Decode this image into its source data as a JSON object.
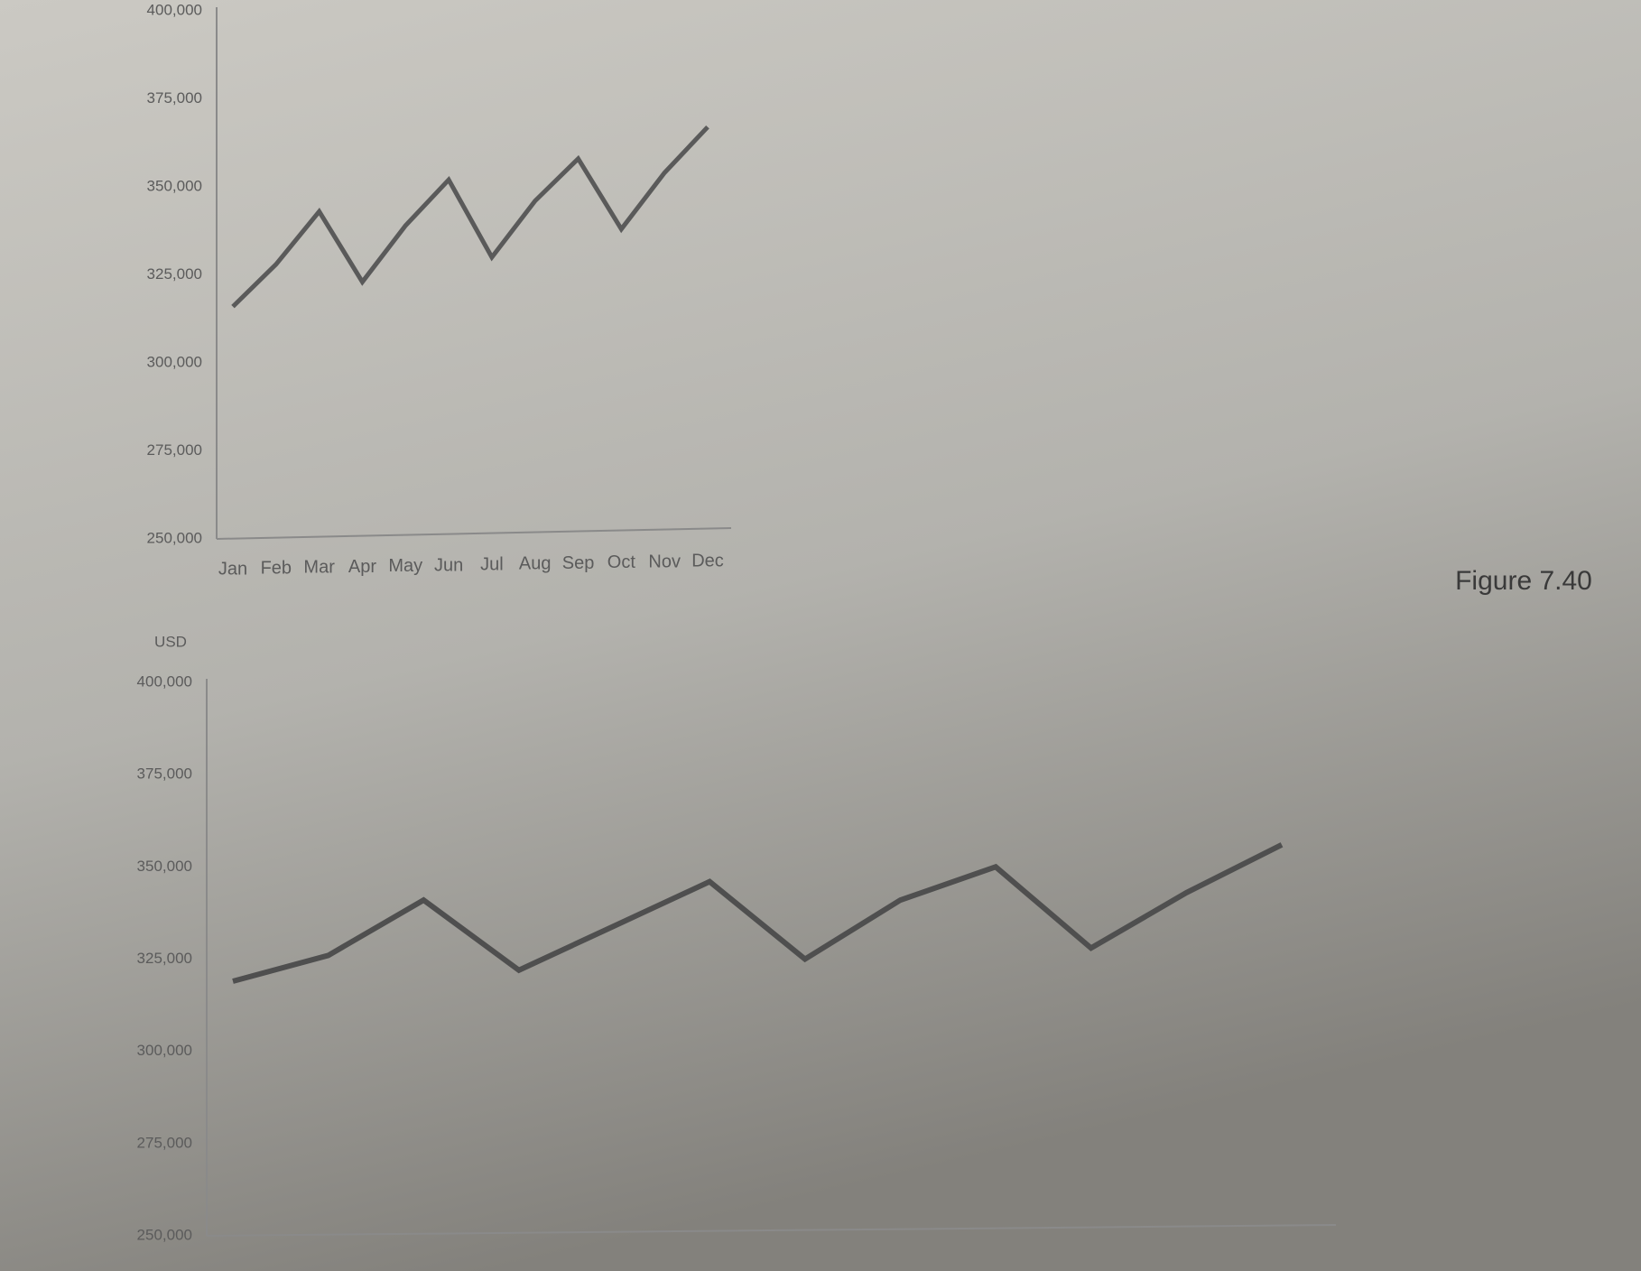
{
  "chart_data": [
    {
      "type": "line",
      "categories": [
        "Jan",
        "Feb",
        "Mar",
        "Apr",
        "May",
        "Jun",
        "Jul",
        "Aug",
        "Sep",
        "Oct",
        "Nov",
        "Dec"
      ],
      "series": [
        {
          "color": "#5a5a5a",
          "values": [
            316000,
            328000,
            343000,
            323000,
            339000,
            352000,
            330000,
            346000,
            358000,
            338000,
            354000,
            367000
          ]
        }
      ],
      "ylim": [
        250000,
        400000
      ],
      "yticks": [
        {
          "value": 250000,
          "label": "250,000"
        },
        {
          "value": 275000,
          "label": "275,000"
        },
        {
          "value": 300000,
          "label": "300,000"
        },
        {
          "value": 325000,
          "label": "325,000"
        },
        {
          "value": 350000,
          "label": "350,000"
        },
        {
          "value": 375000,
          "label": "375,000"
        },
        {
          "value": 400000,
          "label": "400,000"
        }
      ],
      "grid": false
    },
    {
      "type": "line",
      "ylabel": "USD",
      "categories": [
        null,
        null,
        null,
        null,
        null,
        null,
        null,
        null,
        null,
        null,
        null,
        null
      ],
      "series": [
        {
          "color": "#4f4f4f",
          "values": [
            319000,
            326000,
            341000,
            322000,
            334000,
            346000,
            325000,
            341000,
            350000,
            328000,
            343000,
            356000
          ]
        }
      ],
      "ylim": [
        250000,
        400000
      ],
      "yticks": [
        {
          "value": 250000,
          "label": "250,000"
        },
        {
          "value": 275000,
          "label": "275,000"
        },
        {
          "value": 300000,
          "label": "300,000"
        },
        {
          "value": 325000,
          "label": "325,000"
        },
        {
          "value": 350000,
          "label": "350,000"
        },
        {
          "value": 375000,
          "label": "375,000"
        },
        {
          "value": 400000,
          "label": "400,000"
        }
      ],
      "grid": false
    }
  ],
  "figure_label": "Figure 7.40"
}
